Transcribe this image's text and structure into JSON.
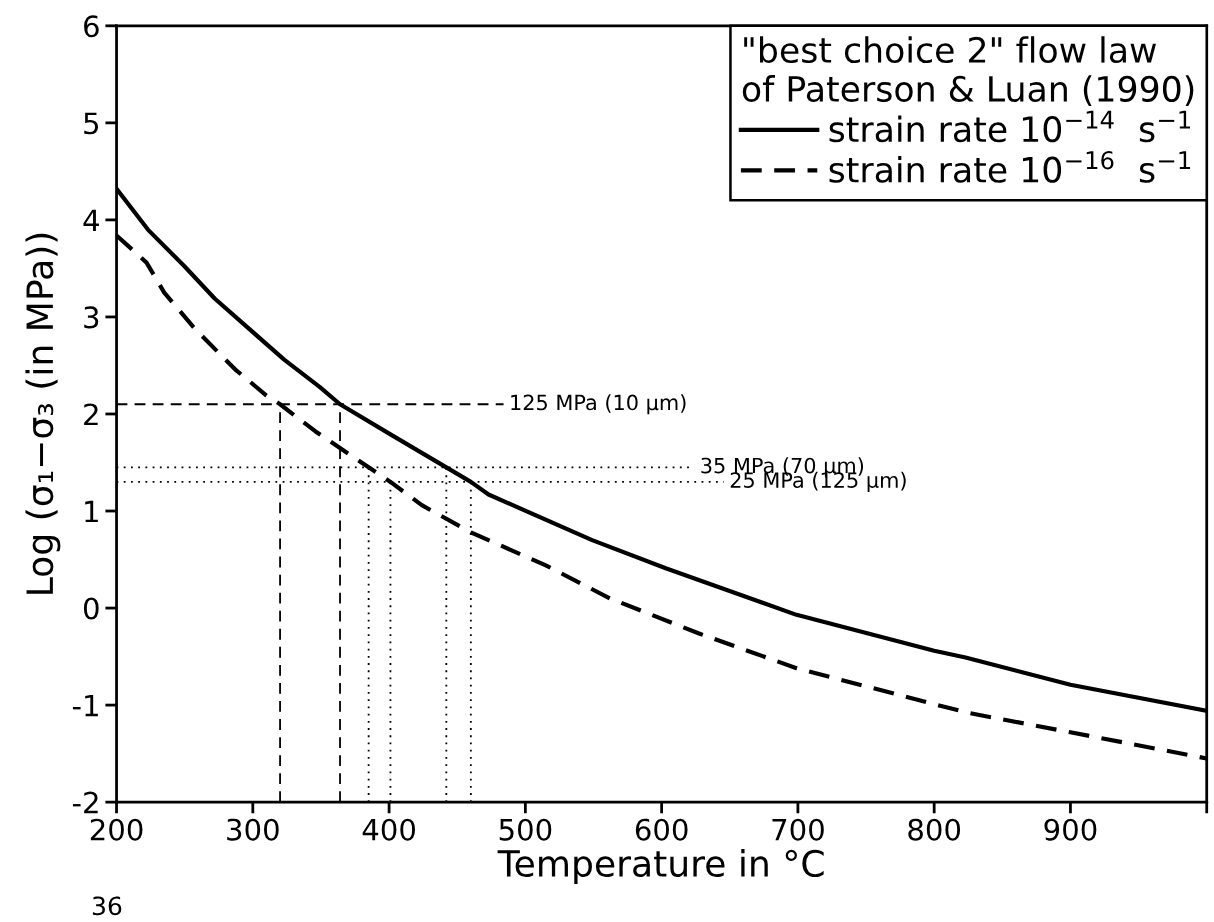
{
  "chart_data": {
    "type": "line",
    "xlabel": "Temperature in °C",
    "ylabel": "Log (σ₁−σ₃ (in MPa))",
    "legend_title": "\"best choice 2\" flow law\nof Paterson & Luan (1990)",
    "xlim": [
      200,
      1000
    ],
    "xticks": [
      200,
      300,
      400,
      500,
      600,
      700,
      800,
      900,
      {
        "value": 1000,
        "label": null
      }
    ],
    "ylim": [
      -2,
      6
    ],
    "yticks": [
      -2,
      -1,
      0,
      1,
      2,
      3,
      4,
      5,
      6
    ],
    "grid": false,
    "legend": "top right",
    "marker": "none",
    "series": [
      {
        "name": "strain rate 10$^{−14}$  s$^{−1}$",
        "color": "#000000",
        "line_style": "solid",
        "x": [
          200,
          223,
          250,
          272,
          323,
          349,
          364,
          401,
          442,
          460,
          473,
          549,
          603,
          699,
          800,
          823,
          900,
          1000
        ],
        "values": [
          4.32,
          3.9,
          3.52,
          3.19,
          2.56,
          2.28,
          2.1,
          1.79,
          1.45,
          1.3,
          1.17,
          0.7,
          0.41,
          -0.07,
          -0.44,
          -0.51,
          -0.79,
          -1.06
        ]
      },
      {
        "name": "strain rate 10$^{−16}$  s$^{−1}$",
        "color": "#000000",
        "line_style": "dashed",
        "x": [
          200,
          222,
          235,
          258,
          287,
          310,
          320,
          346,
          385,
          401,
          424,
          460,
          515,
          562,
          627,
          699,
          800,
          825,
          900,
          1000
        ],
        "values": [
          3.84,
          3.56,
          3.25,
          2.87,
          2.46,
          2.19,
          2.1,
          1.82,
          1.45,
          1.3,
          1.06,
          0.78,
          0.44,
          0.1,
          -0.26,
          -0.62,
          -0.99,
          -1.08,
          -1.28,
          -1.55
        ]
      },
      {
        "color": "#000000",
        "line_style": "dashed",
        "x": [
          320,
          320
        ],
        "values": [
          -2,
          2.1
        ]
      },
      {
        "color": "#000000",
        "line_style": "dashed",
        "x": [
          364,
          364
        ],
        "values": [
          -2,
          2.1
        ]
      },
      {
        "color": "#000000",
        "line_style": "dotted",
        "x": [
          385,
          385
        ],
        "values": [
          -2,
          1.45
        ]
      },
      {
        "color": "#000000",
        "line_style": "dotted",
        "x": [
          401,
          401
        ],
        "values": [
          -2,
          1.3
        ]
      },
      {
        "color": "#000000",
        "line_style": "dotted",
        "x": [
          442,
          442
        ],
        "values": [
          -2,
          1.45
        ]
      },
      {
        "color": "#000000",
        "line_style": "dotted",
        "x": [
          460,
          460
        ],
        "values": [
          -2,
          1.3
        ]
      }
    ],
    "ref_lines": [
      {
        "axis": "y",
        "value": 2.1,
        "label": "125 MPa (10 µm)",
        "line_style": "dashed",
        "color": "#000000"
      },
      {
        "axis": "y",
        "value": 1.45,
        "label": "35 MPa (70 µm)",
        "line_style": "dotted",
        "color": "#000000"
      },
      {
        "axis": "y",
        "value": 1.3,
        "label": "25 MPa (125 µm)",
        "line_style": "dotted",
        "color": "#000000"
      }
    ],
    "annotations": [
      "36"
    ]
  }
}
